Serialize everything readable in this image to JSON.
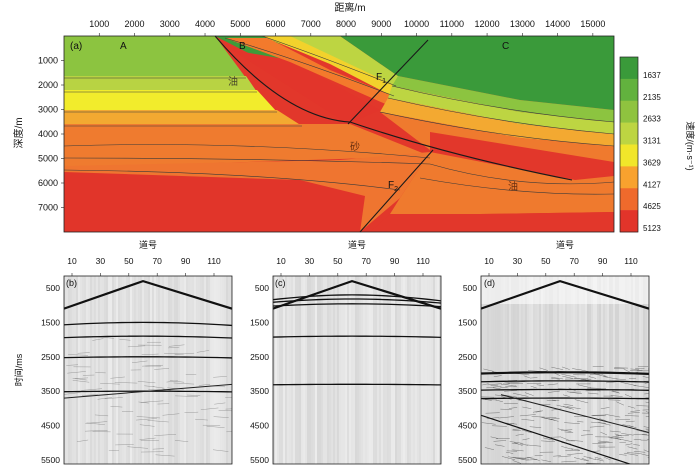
{
  "figure": {
    "panel_a": {
      "label": "(a)",
      "x_title": "距离/m",
      "y_title": "深度/m",
      "x_ticks": [
        "1000",
        "2000",
        "3000",
        "4000",
        "5000",
        "6000",
        "7000",
        "8000",
        "9000",
        "10000",
        "11000",
        "12000",
        "13000",
        "14000",
        "15000"
      ],
      "y_ticks": [
        "1000",
        "2000",
        "3000",
        "4000",
        "5000",
        "6000",
        "7000"
      ],
      "block_labels": [
        "A",
        "B",
        "C"
      ],
      "fault_labels": [
        "F",
        "F"
      ],
      "fault_subscripts": [
        "1",
        "2"
      ],
      "geo_labels": [
        "油",
        "砂",
        "油"
      ],
      "colorbar": {
        "title": "速度/(m·s⁻¹)",
        "ticks": [
          "1637",
          "2135",
          "2633",
          "3131",
          "3629",
          "4127",
          "4625",
          "5123"
        ],
        "colors": [
          "#3a9a3a",
          "#62b23e",
          "#8fc33f",
          "#bdd542",
          "#f1e62a",
          "#f8a22e",
          "#ef6a2c",
          "#e2342a"
        ]
      }
    },
    "gathers": {
      "x_title": "道号",
      "y_title": "时间/ms",
      "x_ticks": [
        "10",
        "30",
        "50",
        "70",
        "90",
        "110"
      ],
      "y_ticks": [
        "500",
        "1500",
        "2500",
        "3500",
        "4500",
        "5500"
      ],
      "panels": [
        {
          "label": "(b)"
        },
        {
          "label": "(c)"
        },
        {
          "label": "(d)"
        }
      ]
    }
  }
}
